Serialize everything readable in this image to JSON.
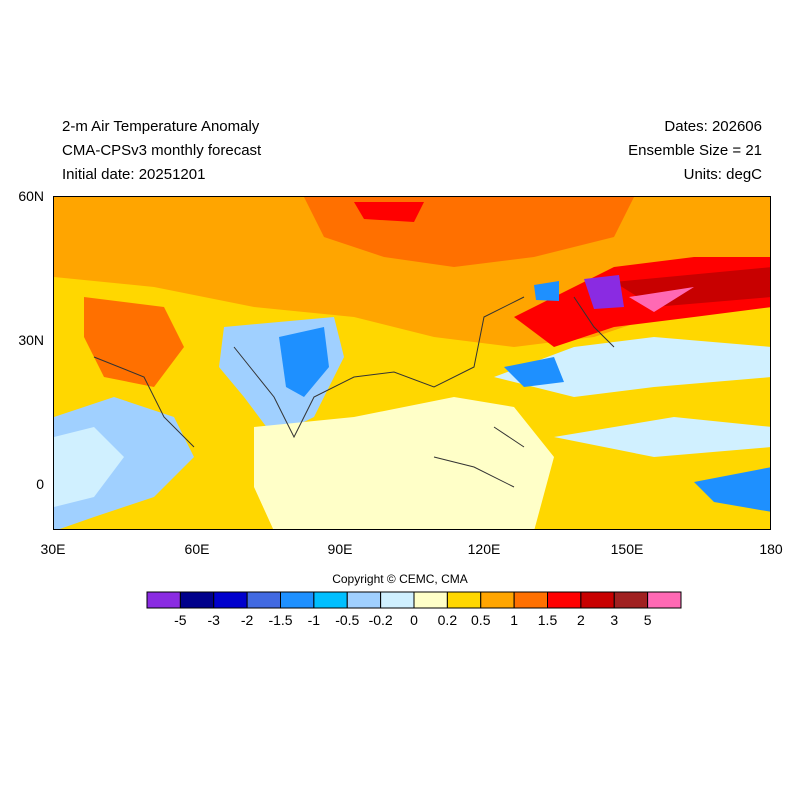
{
  "header": {
    "title": "2-m Air Temperature Anomaly",
    "model": "CMA-CPSv3 monthly forecast",
    "initial": "Initial date: 20251201",
    "dates": "Dates: 202606",
    "ensemble": "Ensemble Size = 21",
    "units": "Units: degC"
  },
  "axes": {
    "lat_ticks": [
      "60N",
      "30N",
      "0"
    ],
    "lon_ticks": [
      "30E",
      "60E",
      "90E",
      "120E",
      "150E",
      "180"
    ]
  },
  "colorbar": {
    "colors": [
      "#8a2be2",
      "#00008b",
      "#0000cd",
      "#4169e1",
      "#1e90ff",
      "#00bfff",
      "#a0d0ff",
      "#d0f0ff",
      "#ffffc8",
      "#ffd700",
      "#ffa500",
      "#ff7000",
      "#ff0000",
      "#c80000",
      "#a02020",
      "#ff69b4"
    ],
    "labels": [
      "-5",
      "-3",
      "-2",
      "-1.5",
      "-1",
      "-0.5",
      "-0.2",
      "0",
      "0.2",
      "0.5",
      "1",
      "1.5",
      "2",
      "3",
      "5"
    ]
  },
  "copyright": "Copyright © CEMC, CMA"
}
